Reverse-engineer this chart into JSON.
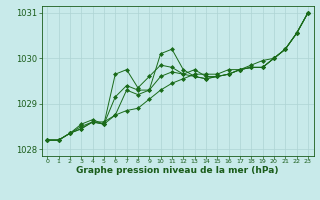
{
  "x": [
    0,
    1,
    2,
    3,
    4,
    5,
    6,
    7,
    8,
    9,
    10,
    11,
    12,
    13,
    14,
    15,
    16,
    17,
    18,
    19,
    20,
    21,
    22,
    23
  ],
  "line1": [
    1028.2,
    1028.2,
    1028.35,
    1028.45,
    1028.6,
    1028.6,
    1028.75,
    1028.85,
    1028.9,
    1029.1,
    1029.3,
    1029.45,
    1029.55,
    1029.65,
    1029.65,
    1029.65,
    1029.75,
    1029.75,
    1029.85,
    1029.95,
    1030.0,
    1030.2,
    1030.55,
    1031.0
  ],
  "line2": [
    1028.2,
    1028.2,
    1028.35,
    1028.45,
    1028.6,
    1028.55,
    1028.75,
    1029.3,
    1029.2,
    1029.3,
    1030.1,
    1030.2,
    1029.75,
    1029.6,
    1029.55,
    1029.6,
    1029.65,
    1029.75,
    1029.8,
    1029.8,
    1030.0,
    1030.2,
    1030.55,
    1031.0
  ],
  "line3": [
    1028.2,
    1028.2,
    1028.35,
    1028.55,
    1028.65,
    1028.55,
    1029.15,
    1029.4,
    1029.3,
    1029.3,
    1029.6,
    1029.7,
    1029.65,
    1029.75,
    1029.6,
    1029.6,
    1029.65,
    1029.75,
    1029.8,
    1029.8,
    1030.0,
    1030.2,
    1030.55,
    1031.0
  ],
  "line4": [
    1028.2,
    1028.2,
    1028.35,
    1028.5,
    1028.6,
    1028.55,
    1029.65,
    1029.75,
    1029.35,
    1029.6,
    1029.85,
    1029.8,
    1029.65,
    1029.6,
    1029.55,
    1029.6,
    1029.65,
    1029.75,
    1029.8,
    1029.8,
    1030.0,
    1030.2,
    1030.55,
    1031.0
  ],
  "line_color": "#1a6b1a",
  "marker": "D",
  "marker_size": 2.0,
  "bg_color": "#c8eaea",
  "grid_color": "#aed4d4",
  "text_color": "#1a5c1a",
  "xlabel": "Graphe pression niveau de la mer (hPa)",
  "ylim": [
    1027.85,
    1031.15
  ],
  "yticks": [
    1028,
    1029,
    1030,
    1031
  ],
  "xticks": [
    0,
    1,
    2,
    3,
    4,
    5,
    6,
    7,
    8,
    9,
    10,
    11,
    12,
    13,
    14,
    15,
    16,
    17,
    18,
    19,
    20,
    21,
    22,
    23
  ],
  "xlabel_fontsize": 6.5,
  "ytick_fontsize": 6.0,
  "xtick_fontsize": 4.5
}
